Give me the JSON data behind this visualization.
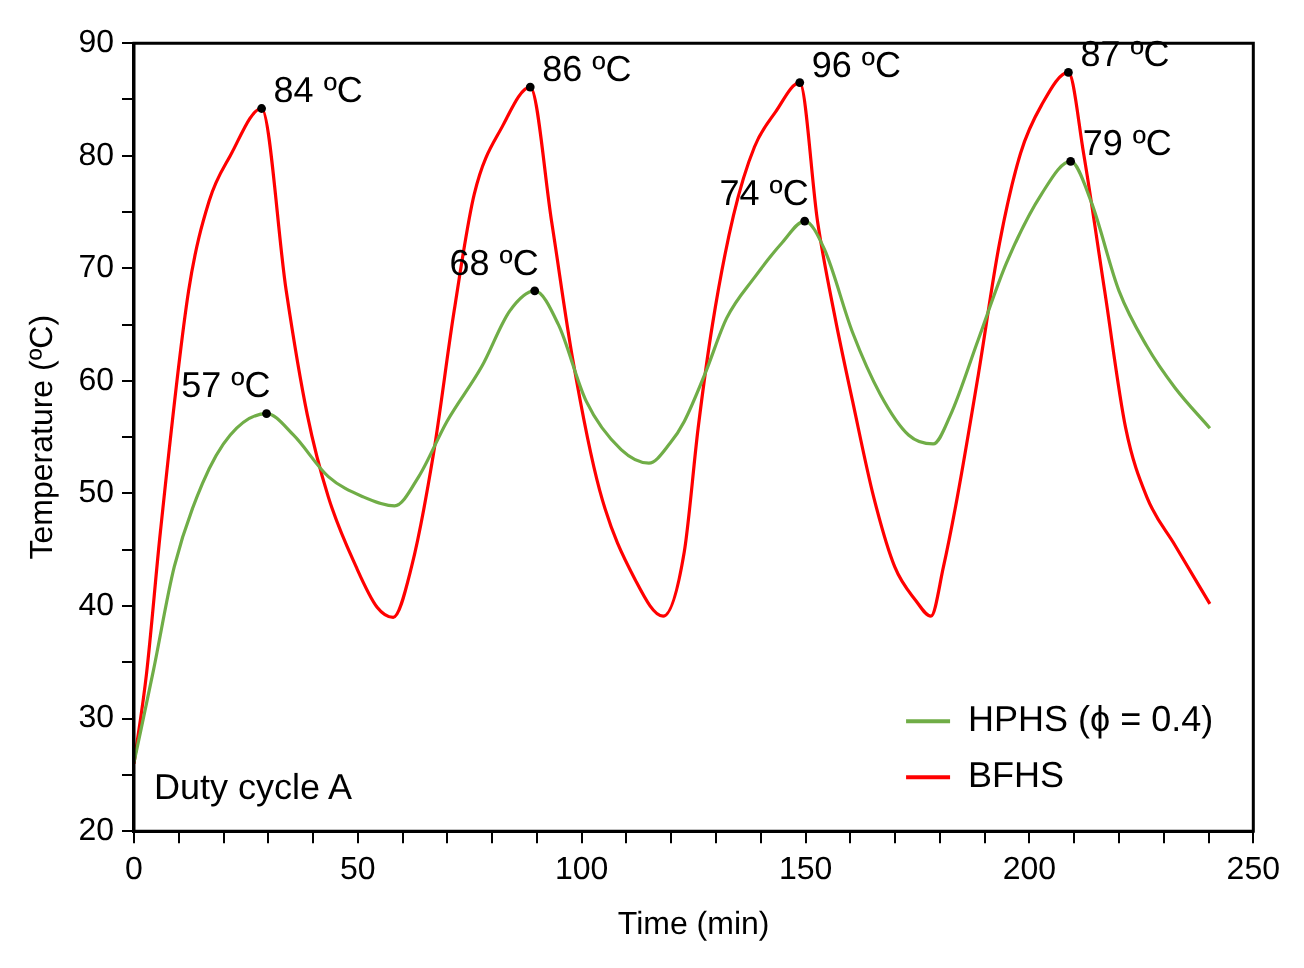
{
  "chart_data": {
    "type": "line",
    "xlabel": "Time (min)",
    "ylabel": "Temperature (ºC)",
    "xlim": [
      0,
      250
    ],
    "ylim": [
      20,
      90
    ],
    "xticks": [
      0,
      {
        "value": 10,
        "label": null
      },
      {
        "value": 20,
        "label": null
      },
      {
        "value": 30,
        "label": null
      },
      {
        "value": 40,
        "label": null
      },
      50,
      {
        "value": 60,
        "label": null
      },
      {
        "value": 70,
        "label": null
      },
      {
        "value": 80,
        "label": null
      },
      {
        "value": 90,
        "label": null
      },
      100,
      {
        "value": 110,
        "label": null
      },
      {
        "value": 120,
        "label": null
      },
      {
        "value": 130,
        "label": null
      },
      {
        "value": 140,
        "label": null
      },
      150,
      {
        "value": 160,
        "label": null
      },
      {
        "value": 170,
        "label": null
      },
      {
        "value": 180,
        "label": null
      },
      {
        "value": 190,
        "label": null
      },
      200,
      {
        "value": 210,
        "label": null
      },
      {
        "value": 220,
        "label": null
      },
      {
        "value": 230,
        "label": null
      },
      {
        "value": 240,
        "label": null
      },
      250
    ],
    "yticks": [
      20,
      {
        "value": 25,
        "label": null
      },
      30,
      {
        "value": 35,
        "label": null
      },
      40,
      {
        "value": 45,
        "label": null
      },
      50,
      {
        "value": 55,
        "label": null
      },
      60,
      {
        "value": 65,
        "label": null
      },
      70,
      {
        "value": 75,
        "label": null
      },
      80,
      {
        "value": 85,
        "label": null
      },
      90
    ],
    "grid": false,
    "legend": "bottom right",
    "marker": "none",
    "line_style": "solid",
    "series": [
      {
        "name": "HPHS (ϕ = 0.4)",
        "color": "#70ad47",
        "x": [
          0,
          4.4,
          9,
          15.3,
          21.5,
          29.6,
          35.6,
          43.4,
          51.2,
          58.2,
          63.6,
          69.9,
          77.7,
          83.9,
          89.5,
          94.8,
          101,
          108.8,
          115,
          119.8,
          122.9,
          127.6,
          132.4,
          138.6,
          144.8,
          149.8,
          154.2,
          160.5,
          166.7,
          173,
          178.5,
          182.4,
          188.6,
          194.9,
          202.7,
          209.2,
          213.8,
          220,
          226.2,
          232.5,
          240.3
        ],
        "values": [
          26.1,
          34.4,
          43.5,
          50.9,
          55.2,
          57.1,
          55.2,
          51.5,
          49.7,
          48.9,
          51.5,
          56.4,
          61.3,
          66.2,
          68,
          65,
          58.2,
          53.9,
          52.7,
          54.5,
          56.4,
          60.7,
          65.6,
          69.2,
          72.3,
          74.2,
          71.7,
          64.3,
          58.8,
          55.2,
          54.4,
          57,
          63.7,
          70.5,
          76.6,
          79.5,
          75.9,
          68,
          63.1,
          59.4,
          55.8
        ]
      },
      {
        "name": "BFHS",
        "color": "#ff0000",
        "x": [
          0,
          2.8,
          5.9,
          12.2,
          16.8,
          21.5,
          28.5,
          34,
          38.7,
          43.4,
          49.6,
          54.3,
          57.9,
          62,
          66.8,
          71.5,
          76,
          82.4,
          88.5,
          93.3,
          98,
          104,
          112,
          118.2,
          122.9,
          126,
          129.2,
          133.9,
          138.6,
          143.3,
          148.7,
          152.7,
          156.6,
          160.5,
          165.2,
          169.9,
          174.6,
          178,
          180.8,
          183.9,
          188.6,
          193.3,
          198,
          202.7,
          208.7,
          212.1,
          216.8,
          221.5,
          226.2,
          232.5,
          240.3
        ],
        "values": [
          26,
          34,
          46.6,
          68,
          76,
          80,
          84.2,
          68,
          57,
          49.7,
          43.5,
          39.9,
          39,
          43.5,
          53.3,
          66.2,
          76.6,
          82.7,
          86.1,
          74.1,
          61.9,
          50.3,
          42.3,
          39.1,
          44.8,
          55.8,
          65,
          74.7,
          80.8,
          83.9,
          86.5,
          74.1,
          65.6,
          58.2,
          49.7,
          43.5,
          40.5,
          39.1,
          43.5,
          49.7,
          60.6,
          72.2,
          80.2,
          84.5,
          87.4,
          80.2,
          68,
          55.8,
          49.7,
          45.4,
          40.2
        ]
      }
    ],
    "annotations": [
      "Duty cycle A",
      {
        "text": "84 ºC",
        "x": 28.5,
        "y": 84.2
      },
      {
        "text": "57 ºC",
        "x": 29.6,
        "y": 57.1
      },
      {
        "text": "86 ºC",
        "x": 88.5,
        "y": 86.1
      },
      {
        "text": "68 ºC",
        "x": 89.5,
        "y": 68
      },
      {
        "text": "96 ºC",
        "x": 148.7,
        "y": 86.5
      },
      {
        "text": "74 ºC",
        "x": 149.8,
        "y": 74.2
      },
      {
        "text": "87 ºC",
        "x": 208.7,
        "y": 87.4
      },
      {
        "text": "79 ºC",
        "x": 209.2,
        "y": 79.5
      }
    ]
  }
}
